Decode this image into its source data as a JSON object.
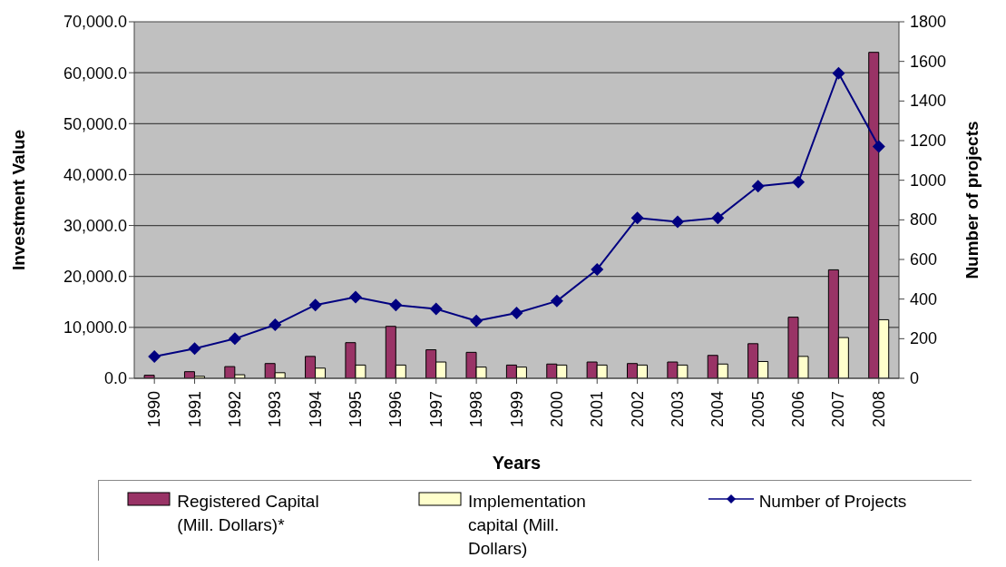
{
  "chart_data": {
    "type": "bar",
    "xlabel": "Years",
    "ylabel": "Investment Value",
    "y2label": "Number of projects",
    "categories": [
      "1990",
      "1991",
      "1992",
      "1993",
      "1994",
      "1995",
      "1996",
      "1997",
      "1998",
      "1999",
      "2000",
      "2001",
      "2002",
      "2003",
      "2004",
      "2005",
      "2006",
      "2007",
      "2008"
    ],
    "series": [
      {
        "name": "Registered Capital (Mill. Dollars)*",
        "color": "#993366",
        "values": [
          600,
          1300,
          2300,
          2900,
          4300,
          7000,
          10200,
          5600,
          5100,
          2600,
          2800,
          3200,
          2900,
          3200,
          4500,
          6800,
          12000,
          21300,
          64000
        ]
      },
      {
        "name": "Implementation capital (Mill. Dollars)",
        "color": "#ffffcc",
        "values": [
          null,
          400,
          700,
          1100,
          2000,
          2600,
          2600,
          3200,
          2200,
          2200,
          2600,
          2600,
          2600,
          2600,
          2800,
          3300,
          4300,
          8000,
          11500
        ]
      },
      {
        "name": "Number of Projects",
        "type": "line",
        "axis": "y2",
        "color": "#000080",
        "marker": "diamond",
        "values": [
          110,
          150,
          200,
          270,
          370,
          410,
          370,
          350,
          290,
          330,
          390,
          550,
          810,
          790,
          810,
          970,
          990,
          1540,
          1170
        ]
      }
    ],
    "ylim": [
      0,
      70000
    ],
    "yticks": [
      {
        "value": 0,
        "label": "0.0"
      },
      {
        "value": 10000,
        "label": "10,000.0"
      },
      {
        "value": 20000,
        "label": "20,000.0"
      },
      {
        "value": 30000,
        "label": "30,000.0"
      },
      {
        "value": 40000,
        "label": "40,000.0"
      },
      {
        "value": 50000,
        "label": "50,000.0"
      },
      {
        "value": 60000,
        "label": "60,000.0"
      },
      {
        "value": 70000,
        "label": "70,000.0"
      }
    ],
    "y2lim": [
      0,
      1800
    ],
    "y2ticks": [
      0,
      200,
      400,
      600,
      800,
      1000,
      1200,
      1400,
      1600,
      1800
    ],
    "grid": "y",
    "legend": "bottom"
  }
}
